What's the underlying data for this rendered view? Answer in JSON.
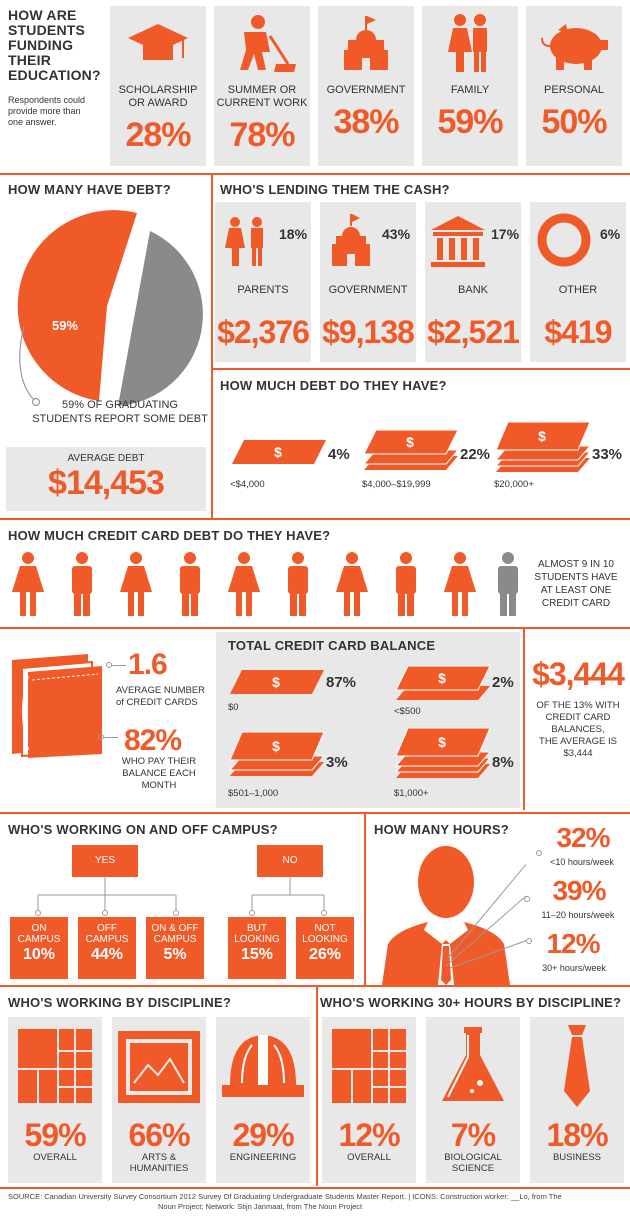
{
  "colors": {
    "accent": "#f05a28",
    "grey": "#8a8a8a",
    "tile": "#e8e8e8"
  },
  "funding": {
    "title": "HOW ARE STUDENTS FUNDING THEIR EDUCATION?",
    "title_lines": [
      "HOW ARE",
      "STUDENTS",
      "FUNDING",
      "THEIR",
      "EDUCATION?"
    ],
    "note_lines": [
      "Respondents could",
      "provide more than",
      "one answer."
    ],
    "items": [
      {
        "label": [
          "SCHOLARSHIP",
          "or AWARD"
        ],
        "pct": "28%",
        "icon": "graduation-cap-icon"
      },
      {
        "label": [
          "SUMMER or",
          "CURRENT WORK"
        ],
        "pct": "78%",
        "icon": "construction-worker-icon"
      },
      {
        "label": [
          "GOVERNMENT",
          ""
        ],
        "pct": "38%",
        "icon": "government-building-icon"
      },
      {
        "label": [
          "FAMILY",
          ""
        ],
        "pct": "59%",
        "icon": "family-icon"
      },
      {
        "label": [
          "PERSONAL",
          ""
        ],
        "pct": "50%",
        "icon": "piggy-bank-icon"
      }
    ]
  },
  "debt": {
    "title": "HOW MANY HAVE DEBT?",
    "pie_label": "59%",
    "caption_lines": [
      "59% OF GRADUATING",
      "STUDENTS REPORT SOME DEBT"
    ],
    "avg_label": "AVERAGE DEBT",
    "avg_value": "$14,453"
  },
  "lending": {
    "title": "WHO'S LENDING THEM THE CASH?",
    "items": [
      {
        "pct": "18%",
        "label": "PARENTS",
        "amount": "$2,376",
        "icon": "family-icon"
      },
      {
        "pct": "43%",
        "label": "GOVERNMENT",
        "amount": "$9,138",
        "icon": "government-building-icon"
      },
      {
        "pct": "17%",
        "label": "BANK",
        "amount": "$2,521",
        "icon": "bank-icon"
      },
      {
        "pct": "6%",
        "label": "OTHER",
        "amount": "$419",
        "icon": "ring-icon"
      }
    ]
  },
  "debt_amount": {
    "title": "HOW MUCH DEBT DO THEY HAVE?",
    "items": [
      {
        "pct": "4%",
        "range": "<$4,000"
      },
      {
        "pct": "22%",
        "range": "$4,000–$19,999"
      },
      {
        "pct": "33%",
        "range": "$20,000+"
      }
    ]
  },
  "cc": {
    "title": "HOW MUCH CREDIT CARD DEBT DO THEY HAVE?",
    "note_lines": [
      "ALMOST 9 IN 10",
      "STUDENTS HAVE",
      "AT LEAST ONE",
      "CREDIT CARD"
    ],
    "avg_cards": "1.6",
    "avg_cards_lines": [
      "AVERAGE NUMBER",
      "of CREDIT CARDS"
    ],
    "pay_pct": "82%",
    "pay_lines": [
      "WHO PAY THEIR",
      "BALANCE EACH MONTH"
    ],
    "balance_title": "TOTAL CREDIT CARD BALANCE",
    "balances": [
      {
        "pct": "87%",
        "range": "$0"
      },
      {
        "pct": "2%",
        "range": "<$500"
      },
      {
        "pct": "3%",
        "range": "$501–1,000"
      },
      {
        "pct": "8%",
        "range": "$1,000+"
      }
    ],
    "avg_balance": "$3,444",
    "avg_balance_lines": [
      "OF THE 13% WITH",
      "CREDIT CARD",
      "BALANCES,",
      "THE AVERAGE IS",
      "$3,444"
    ]
  },
  "campus": {
    "title": "WHO'S WORKING ON AND OFF CAMPUS?",
    "yes": "YES",
    "no": "NO",
    "items": [
      {
        "lines": [
          "ON",
          "CAMPUS"
        ],
        "pct": "10%"
      },
      {
        "lines": [
          "OFF",
          "CAMPUS"
        ],
        "pct": "44%"
      },
      {
        "lines": [
          "ON & OFF",
          "CAMPUS"
        ],
        "pct": "5%"
      },
      {
        "lines": [
          "BUT",
          "LOOKING"
        ],
        "pct": "15%"
      },
      {
        "lines": [
          "NOT",
          "LOOKING"
        ],
        "pct": "26%"
      }
    ]
  },
  "hours": {
    "title": "HOW MANY HOURS?",
    "items": [
      {
        "pct": "32%",
        "label": "<10 hours/week"
      },
      {
        "pct": "39%",
        "label": "11–20 hours/week"
      },
      {
        "pct": "12%",
        "label": "30+ hours/week"
      }
    ]
  },
  "discipline": {
    "title": "WHO'S WORKING BY DISCIPLINE?",
    "items": [
      {
        "pct": "59%",
        "lines": [
          "OVERALL",
          ""
        ],
        "icon": "grid-icon"
      },
      {
        "pct": "66%",
        "lines": [
          "ARTS &",
          "HUMANITIES"
        ],
        "icon": "landscape-picture-icon"
      },
      {
        "pct": "29%",
        "lines": [
          "ENGINEERING",
          ""
        ],
        "icon": "hard-hat-icon"
      }
    ]
  },
  "discipline30": {
    "title": "WHO'S WORKING 30+ HOURS BY DISCIPLINE?",
    "items": [
      {
        "pct": "12%",
        "lines": [
          "OVERALL",
          ""
        ],
        "icon": "grid-icon"
      },
      {
        "pct": "7%",
        "lines": [
          "BIOLOGICAL",
          "SCIENCE"
        ],
        "icon": "flask-icon"
      },
      {
        "pct": "18%",
        "lines": [
          "BUSINESS",
          ""
        ],
        "icon": "necktie-icon"
      }
    ]
  },
  "source": {
    "line1": "SOURCE: Canadian University Survey Consortium 2012 Survey Of Graduating Undergraduate Students Master Report.  |  ICONS: Construction worker: __Lo, from The",
    "line2": "Noun Project; Network: Stijn Janmaat, from The Noun Project"
  }
}
